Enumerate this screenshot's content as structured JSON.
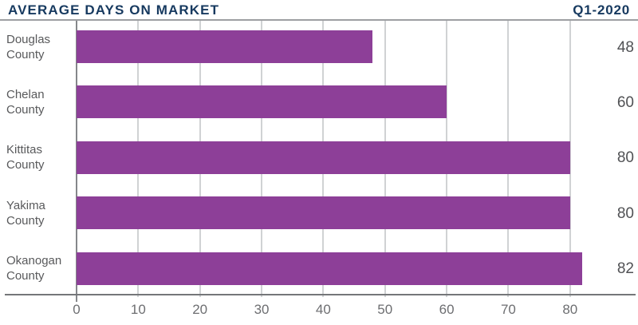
{
  "header": {
    "title": "AVERAGE DAYS ON MARKET",
    "period": "Q1-2020"
  },
  "chart_data": {
    "type": "bar",
    "orientation": "horizontal",
    "title": "AVERAGE DAYS ON MARKET",
    "subtitle": "Q1-2020",
    "categories": [
      "Douglas County",
      "Chelan County",
      "Kittitas County",
      "Yakima County",
      "Okanogan County"
    ],
    "values": [
      48,
      60,
      80,
      80,
      82
    ],
    "data_labels": [
      "48",
      "60",
      "80",
      "80",
      "82"
    ],
    "xticks": [
      0,
      10,
      20,
      30,
      40,
      50,
      60,
      70,
      80
    ],
    "xlim": [
      0,
      91
    ],
    "xlabel": "",
    "ylabel": "",
    "grid": true,
    "legend": false,
    "colors": {
      "bar": "#8d3f98",
      "title": "#16395f",
      "category_label": "#58595b",
      "tick_label": "#6d6e71",
      "value_label": "#505154",
      "gridline": "#d0d2d4",
      "axis_line": "#747679",
      "header_rule": "#9d9fa2"
    }
  }
}
